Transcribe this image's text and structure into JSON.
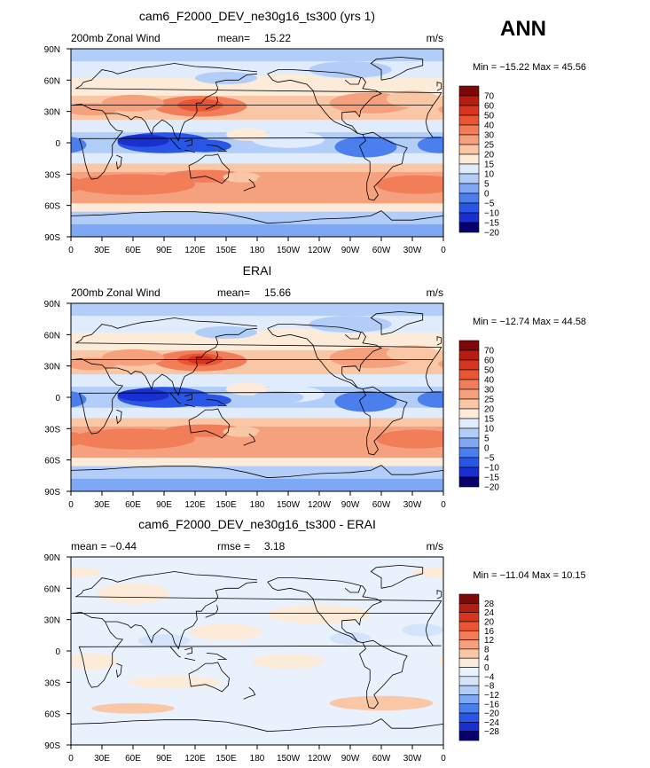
{
  "season": "ANN",
  "panels": [
    {
      "title": "cam6_F2000_DEV_ne30g16_ts300 (yrs 1)",
      "left_label": "200mb Zonal Wind",
      "stat_label": "mean=",
      "stat_value": "15.22",
      "units": "m/s",
      "minmax": "Min = −15.22 Max =  45.56"
    },
    {
      "title": "ERAI",
      "left_label": "200mb Zonal Wind",
      "stat_label": "mean=",
      "stat_value": "15.66",
      "units": "m/s",
      "minmax": "Min = −12.74 Max =  44.58"
    },
    {
      "title": "cam6_F2000_DEV_ne30g16_ts300 - ERAI",
      "left_label": "mean =   −0.44",
      "stat_label": "rmse =",
      "stat_value": "3.18",
      "units": "m/s",
      "minmax": "Min = −11.04 Max =  10.15"
    }
  ],
  "chart_data": [
    {
      "type": "contour_map",
      "variable": "200mb Zonal Wind",
      "units": "m/s",
      "mean": 15.22,
      "min": -15.22,
      "max": 45.56,
      "x_tick_labels": [
        "0",
        "30E",
        "60E",
        "90E",
        "120E",
        "150E",
        "180",
        "150W",
        "120W",
        "90W",
        "60W",
        "30W",
        "0"
      ],
      "y_tick_labels": [
        "90N",
        "60N",
        "30N",
        "0",
        "30S",
        "60S",
        "90S"
      ],
      "colorbar_levels": [
        "70",
        "60",
        "50",
        "40",
        "30",
        "25",
        "20",
        "15",
        "10",
        "5",
        "0",
        "−5",
        "−10",
        "−15",
        "−20"
      ]
    },
    {
      "type": "contour_map",
      "variable": "200mb Zonal Wind",
      "units": "m/s",
      "mean": 15.66,
      "min": -12.74,
      "max": 44.58,
      "x_tick_labels": [
        "0",
        "30E",
        "60E",
        "90E",
        "120E",
        "150E",
        "180",
        "150W",
        "120W",
        "90W",
        "60W",
        "30W",
        "0"
      ],
      "y_tick_labels": [
        "90N",
        "60N",
        "30N",
        "0",
        "30S",
        "60S",
        "90S"
      ],
      "colorbar_levels": [
        "70",
        "60",
        "50",
        "40",
        "30",
        "25",
        "20",
        "15",
        "10",
        "5",
        "0",
        "−5",
        "−10",
        "−15",
        "−20"
      ]
    },
    {
      "type": "contour_map",
      "variable": "difference",
      "units": "m/s",
      "mean": -0.44,
      "rmse": 3.18,
      "min": -11.04,
      "max": 10.15,
      "x_tick_labels": [
        "0",
        "30E",
        "60E",
        "90E",
        "120E",
        "150E",
        "180",
        "150W",
        "120W",
        "90W",
        "60W",
        "30W",
        "0"
      ],
      "y_tick_labels": [
        "90N",
        "60N",
        "30N",
        "0",
        "30S",
        "60S",
        "90S"
      ],
      "colorbar_levels": [
        "28",
        "24",
        "20",
        "16",
        "12",
        "8",
        "4",
        "0",
        "−4",
        "−8",
        "−12",
        "−16",
        "−20",
        "−24",
        "−28"
      ]
    }
  ],
  "colors": {
    "main_scale": [
      "#08006e",
      "#1a2fcf",
      "#2a56e6",
      "#4b7fee",
      "#7ea8f4",
      "#b3cdf9",
      "#e0ecfc",
      "#fdebd9",
      "#f9c6a6",
      "#f6a17d",
      "#f17d59",
      "#ea5534",
      "#d7351e",
      "#b51d12",
      "#7e0808"
    ],
    "diff_scale": [
      "#08006e",
      "#1a2fcf",
      "#2a56e6",
      "#4b7fee",
      "#7ea8f4",
      "#b3cdf9",
      "#d4e4fa",
      "#e9f1fd",
      "#fdebd9",
      "#f9c6a6",
      "#f6a17d",
      "#f17d59",
      "#ea5534",
      "#d7351e",
      "#b51d12",
      "#7e0808"
    ]
  }
}
